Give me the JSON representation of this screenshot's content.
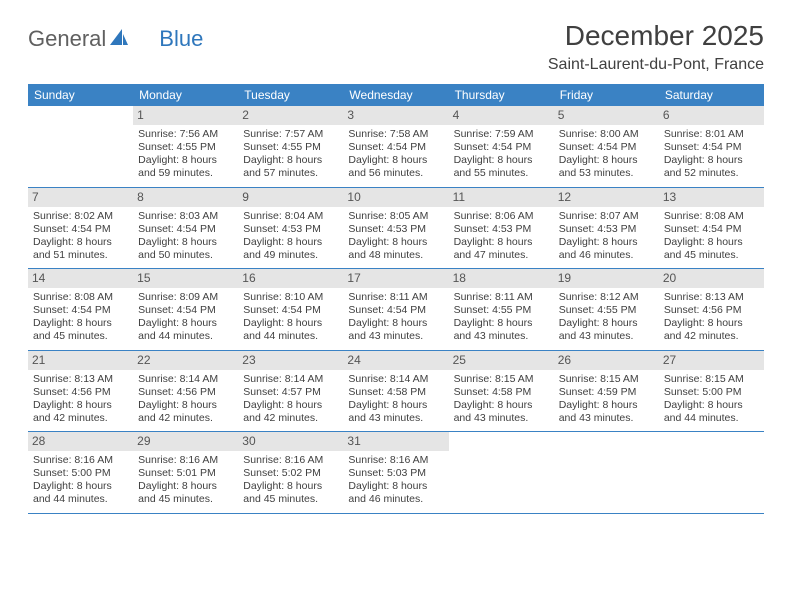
{
  "logo": {
    "part1": "General",
    "part2": "Blue"
  },
  "title": "December 2025",
  "location": "Saint-Laurent-du-Pont, France",
  "colors": {
    "header_bg": "#3a82c4",
    "header_text": "#ffffff",
    "daynum_bg": "#e5e5e5",
    "rule": "#3a82c4",
    "logo_gray": "#606060",
    "logo_blue": "#2f77bc",
    "text": "#404040"
  },
  "days_of_week": [
    "Sunday",
    "Monday",
    "Tuesday",
    "Wednesday",
    "Thursday",
    "Friday",
    "Saturday"
  ],
  "weeks": [
    [
      {
        "n": "",
        "sunrise": "",
        "sunset": "",
        "daylight": ""
      },
      {
        "n": "1",
        "sunrise": "Sunrise: 7:56 AM",
        "sunset": "Sunset: 4:55 PM",
        "daylight": "Daylight: 8 hours and 59 minutes."
      },
      {
        "n": "2",
        "sunrise": "Sunrise: 7:57 AM",
        "sunset": "Sunset: 4:55 PM",
        "daylight": "Daylight: 8 hours and 57 minutes."
      },
      {
        "n": "3",
        "sunrise": "Sunrise: 7:58 AM",
        "sunset": "Sunset: 4:54 PM",
        "daylight": "Daylight: 8 hours and 56 minutes."
      },
      {
        "n": "4",
        "sunrise": "Sunrise: 7:59 AM",
        "sunset": "Sunset: 4:54 PM",
        "daylight": "Daylight: 8 hours and 55 minutes."
      },
      {
        "n": "5",
        "sunrise": "Sunrise: 8:00 AM",
        "sunset": "Sunset: 4:54 PM",
        "daylight": "Daylight: 8 hours and 53 minutes."
      },
      {
        "n": "6",
        "sunrise": "Sunrise: 8:01 AM",
        "sunset": "Sunset: 4:54 PM",
        "daylight": "Daylight: 8 hours and 52 minutes."
      }
    ],
    [
      {
        "n": "7",
        "sunrise": "Sunrise: 8:02 AM",
        "sunset": "Sunset: 4:54 PM",
        "daylight": "Daylight: 8 hours and 51 minutes."
      },
      {
        "n": "8",
        "sunrise": "Sunrise: 8:03 AM",
        "sunset": "Sunset: 4:54 PM",
        "daylight": "Daylight: 8 hours and 50 minutes."
      },
      {
        "n": "9",
        "sunrise": "Sunrise: 8:04 AM",
        "sunset": "Sunset: 4:53 PM",
        "daylight": "Daylight: 8 hours and 49 minutes."
      },
      {
        "n": "10",
        "sunrise": "Sunrise: 8:05 AM",
        "sunset": "Sunset: 4:53 PM",
        "daylight": "Daylight: 8 hours and 48 minutes."
      },
      {
        "n": "11",
        "sunrise": "Sunrise: 8:06 AM",
        "sunset": "Sunset: 4:53 PM",
        "daylight": "Daylight: 8 hours and 47 minutes."
      },
      {
        "n": "12",
        "sunrise": "Sunrise: 8:07 AM",
        "sunset": "Sunset: 4:53 PM",
        "daylight": "Daylight: 8 hours and 46 minutes."
      },
      {
        "n": "13",
        "sunrise": "Sunrise: 8:08 AM",
        "sunset": "Sunset: 4:54 PM",
        "daylight": "Daylight: 8 hours and 45 minutes."
      }
    ],
    [
      {
        "n": "14",
        "sunrise": "Sunrise: 8:08 AM",
        "sunset": "Sunset: 4:54 PM",
        "daylight": "Daylight: 8 hours and 45 minutes."
      },
      {
        "n": "15",
        "sunrise": "Sunrise: 8:09 AM",
        "sunset": "Sunset: 4:54 PM",
        "daylight": "Daylight: 8 hours and 44 minutes."
      },
      {
        "n": "16",
        "sunrise": "Sunrise: 8:10 AM",
        "sunset": "Sunset: 4:54 PM",
        "daylight": "Daylight: 8 hours and 44 minutes."
      },
      {
        "n": "17",
        "sunrise": "Sunrise: 8:11 AM",
        "sunset": "Sunset: 4:54 PM",
        "daylight": "Daylight: 8 hours and 43 minutes."
      },
      {
        "n": "18",
        "sunrise": "Sunrise: 8:11 AM",
        "sunset": "Sunset: 4:55 PM",
        "daylight": "Daylight: 8 hours and 43 minutes."
      },
      {
        "n": "19",
        "sunrise": "Sunrise: 8:12 AM",
        "sunset": "Sunset: 4:55 PM",
        "daylight": "Daylight: 8 hours and 43 minutes."
      },
      {
        "n": "20",
        "sunrise": "Sunrise: 8:13 AM",
        "sunset": "Sunset: 4:56 PM",
        "daylight": "Daylight: 8 hours and 42 minutes."
      }
    ],
    [
      {
        "n": "21",
        "sunrise": "Sunrise: 8:13 AM",
        "sunset": "Sunset: 4:56 PM",
        "daylight": "Daylight: 8 hours and 42 minutes."
      },
      {
        "n": "22",
        "sunrise": "Sunrise: 8:14 AM",
        "sunset": "Sunset: 4:56 PM",
        "daylight": "Daylight: 8 hours and 42 minutes."
      },
      {
        "n": "23",
        "sunrise": "Sunrise: 8:14 AM",
        "sunset": "Sunset: 4:57 PM",
        "daylight": "Daylight: 8 hours and 42 minutes."
      },
      {
        "n": "24",
        "sunrise": "Sunrise: 8:14 AM",
        "sunset": "Sunset: 4:58 PM",
        "daylight": "Daylight: 8 hours and 43 minutes."
      },
      {
        "n": "25",
        "sunrise": "Sunrise: 8:15 AM",
        "sunset": "Sunset: 4:58 PM",
        "daylight": "Daylight: 8 hours and 43 minutes."
      },
      {
        "n": "26",
        "sunrise": "Sunrise: 8:15 AM",
        "sunset": "Sunset: 4:59 PM",
        "daylight": "Daylight: 8 hours and 43 minutes."
      },
      {
        "n": "27",
        "sunrise": "Sunrise: 8:15 AM",
        "sunset": "Sunset: 5:00 PM",
        "daylight": "Daylight: 8 hours and 44 minutes."
      }
    ],
    [
      {
        "n": "28",
        "sunrise": "Sunrise: 8:16 AM",
        "sunset": "Sunset: 5:00 PM",
        "daylight": "Daylight: 8 hours and 44 minutes."
      },
      {
        "n": "29",
        "sunrise": "Sunrise: 8:16 AM",
        "sunset": "Sunset: 5:01 PM",
        "daylight": "Daylight: 8 hours and 45 minutes."
      },
      {
        "n": "30",
        "sunrise": "Sunrise: 8:16 AM",
        "sunset": "Sunset: 5:02 PM",
        "daylight": "Daylight: 8 hours and 45 minutes."
      },
      {
        "n": "31",
        "sunrise": "Sunrise: 8:16 AM",
        "sunset": "Sunset: 5:03 PM",
        "daylight": "Daylight: 8 hours and 46 minutes."
      },
      {
        "n": "",
        "sunrise": "",
        "sunset": "",
        "daylight": ""
      },
      {
        "n": "",
        "sunrise": "",
        "sunset": "",
        "daylight": ""
      },
      {
        "n": "",
        "sunrise": "",
        "sunset": "",
        "daylight": ""
      }
    ]
  ]
}
